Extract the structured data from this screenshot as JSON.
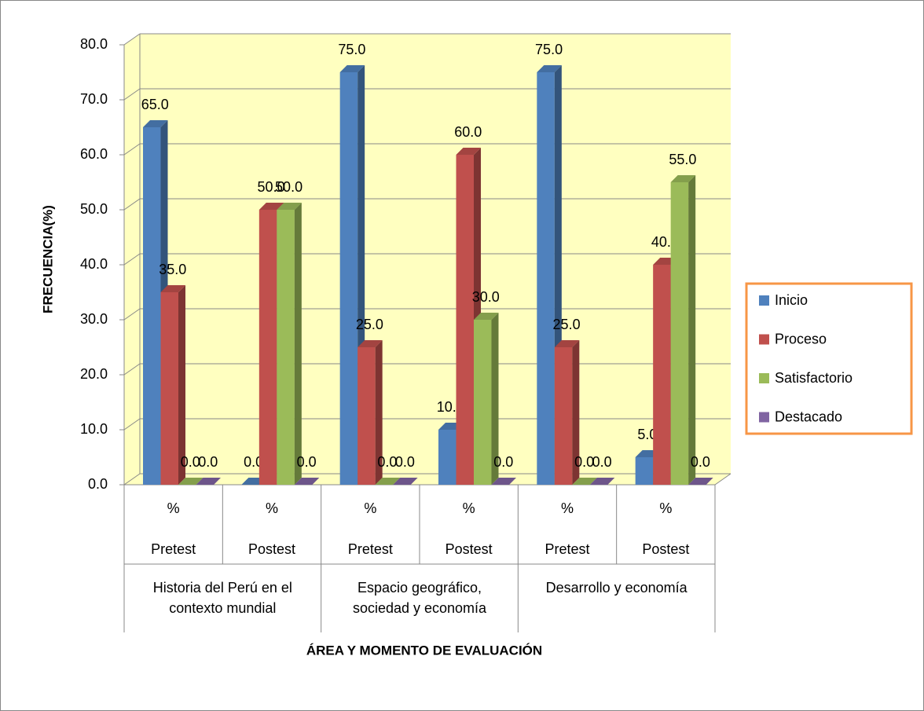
{
  "chart_data": {
    "type": "bar3d",
    "x_label": "ÁREA Y MOMENTO DE EVALUACIÓN",
    "y_label": "FRECUENCIA(%)",
    "categories": [
      [
        "%",
        "Pretest"
      ],
      [
        "%",
        "Postest"
      ],
      [
        "%",
        "Pretest"
      ],
      [
        "%",
        "Postest"
      ],
      [
        "%",
        "Pretest"
      ],
      [
        "%",
        "Postest"
      ]
    ],
    "groups": [
      "Historia del Perú en el contexto mundial",
      "Espacio geográfico, sociedad y economía",
      "Desarrollo y economía"
    ],
    "series": [
      {
        "name": "Inicio",
        "color": "#4f81bd",
        "values": [
          65,
          0,
          75,
          10,
          75,
          5
        ],
        "value_labels": [
          "65.0",
          "0.0",
          "75.0",
          "10.0",
          "75.0",
          "5.0"
        ]
      },
      {
        "name": "Proceso",
        "color": "#c0504d",
        "values": [
          35,
          50,
          25,
          60,
          25,
          40
        ],
        "value_labels": [
          "35.0",
          "50.0",
          "25.0",
          "60.0",
          "25.0",
          "40.0"
        ]
      },
      {
        "name": "Satisfactorio",
        "color": "#9bbb59",
        "values": [
          0,
          50,
          0,
          30,
          0,
          55
        ],
        "value_labels": [
          "0.0",
          "50.0",
          "0.0",
          "30.0",
          "0.0",
          "55.0"
        ]
      },
      {
        "name": "Destacado",
        "color": "#8064a2",
        "values": [
          0,
          0,
          0,
          0,
          0,
          0
        ],
        "value_labels": [
          "0.0",
          "0.0",
          "0.0",
          "0.0",
          "0.0",
          "0.0"
        ]
      }
    ],
    "ylim": [
      0,
      80
    ],
    "yticks": [
      {
        "value": 0,
        "label": "0.0"
      },
      {
        "value": 10,
        "label": "10.0"
      },
      {
        "value": 20,
        "label": "20.0"
      },
      {
        "value": 30,
        "label": "30.0"
      },
      {
        "value": 40,
        "label": "40.0"
      },
      {
        "value": 50,
        "label": "50.0"
      },
      {
        "value": 60,
        "label": "60.0"
      },
      {
        "value": 70,
        "label": "70.0"
      },
      {
        "value": 80,
        "label": "80.0"
      }
    ],
    "grid": true,
    "legend": "right"
  }
}
